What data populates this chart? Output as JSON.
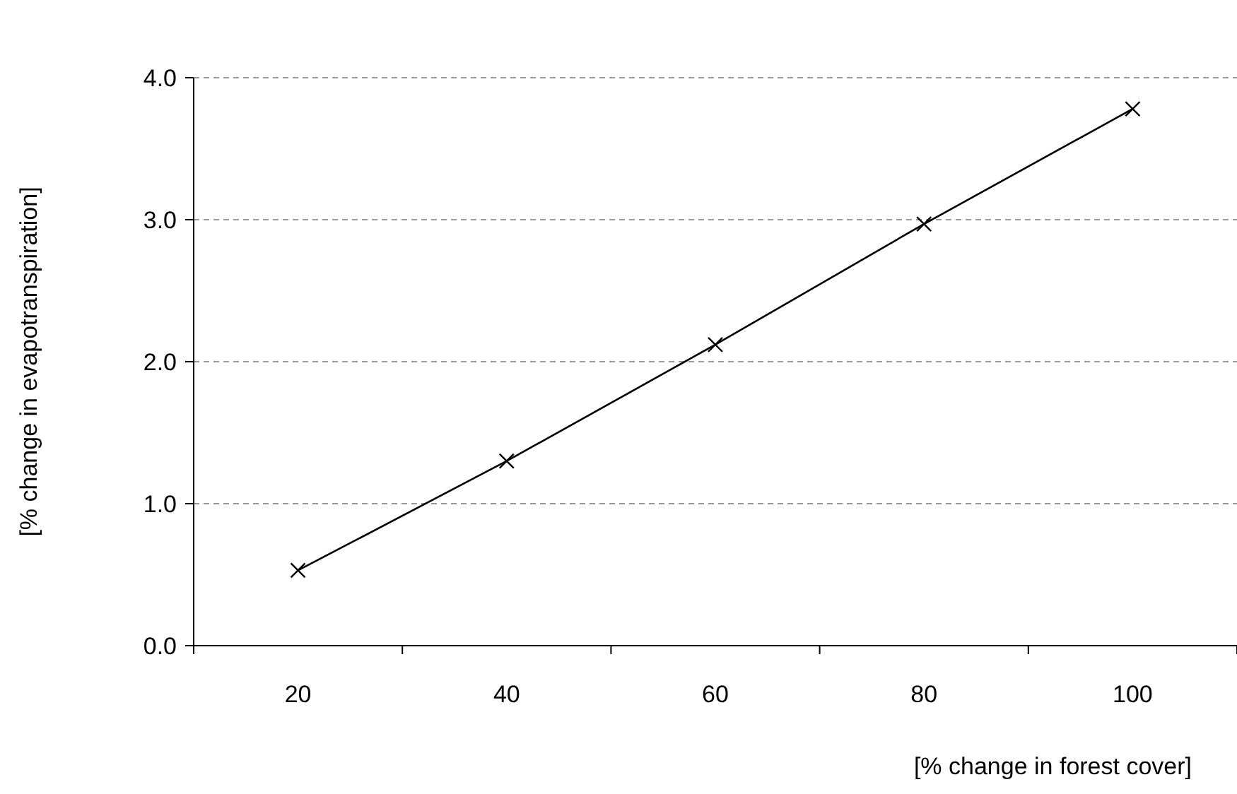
{
  "chart_data": {
    "type": "line",
    "xlabel": "[% change in forest cover]",
    "ylabel": "[% change in evapotranspiration]",
    "categories": [
      "20",
      "40",
      "60",
      "80",
      "100"
    ],
    "series": [
      {
        "color": "#000000",
        "values": [
          0.53,
          1.3,
          2.12,
          2.97,
          3.78
        ]
      }
    ],
    "ylim": [
      0,
      4
    ],
    "yticks": [
      {
        "value": 0,
        "label": "0.0"
      },
      {
        "value": 1,
        "label": "1.0"
      },
      {
        "value": 2,
        "label": "2.0"
      },
      {
        "value": 3,
        "label": "3.0"
      },
      {
        "value": 4,
        "label": "4.0"
      }
    ],
    "grid": "y",
    "marker": "cross",
    "line_style": "solid"
  }
}
